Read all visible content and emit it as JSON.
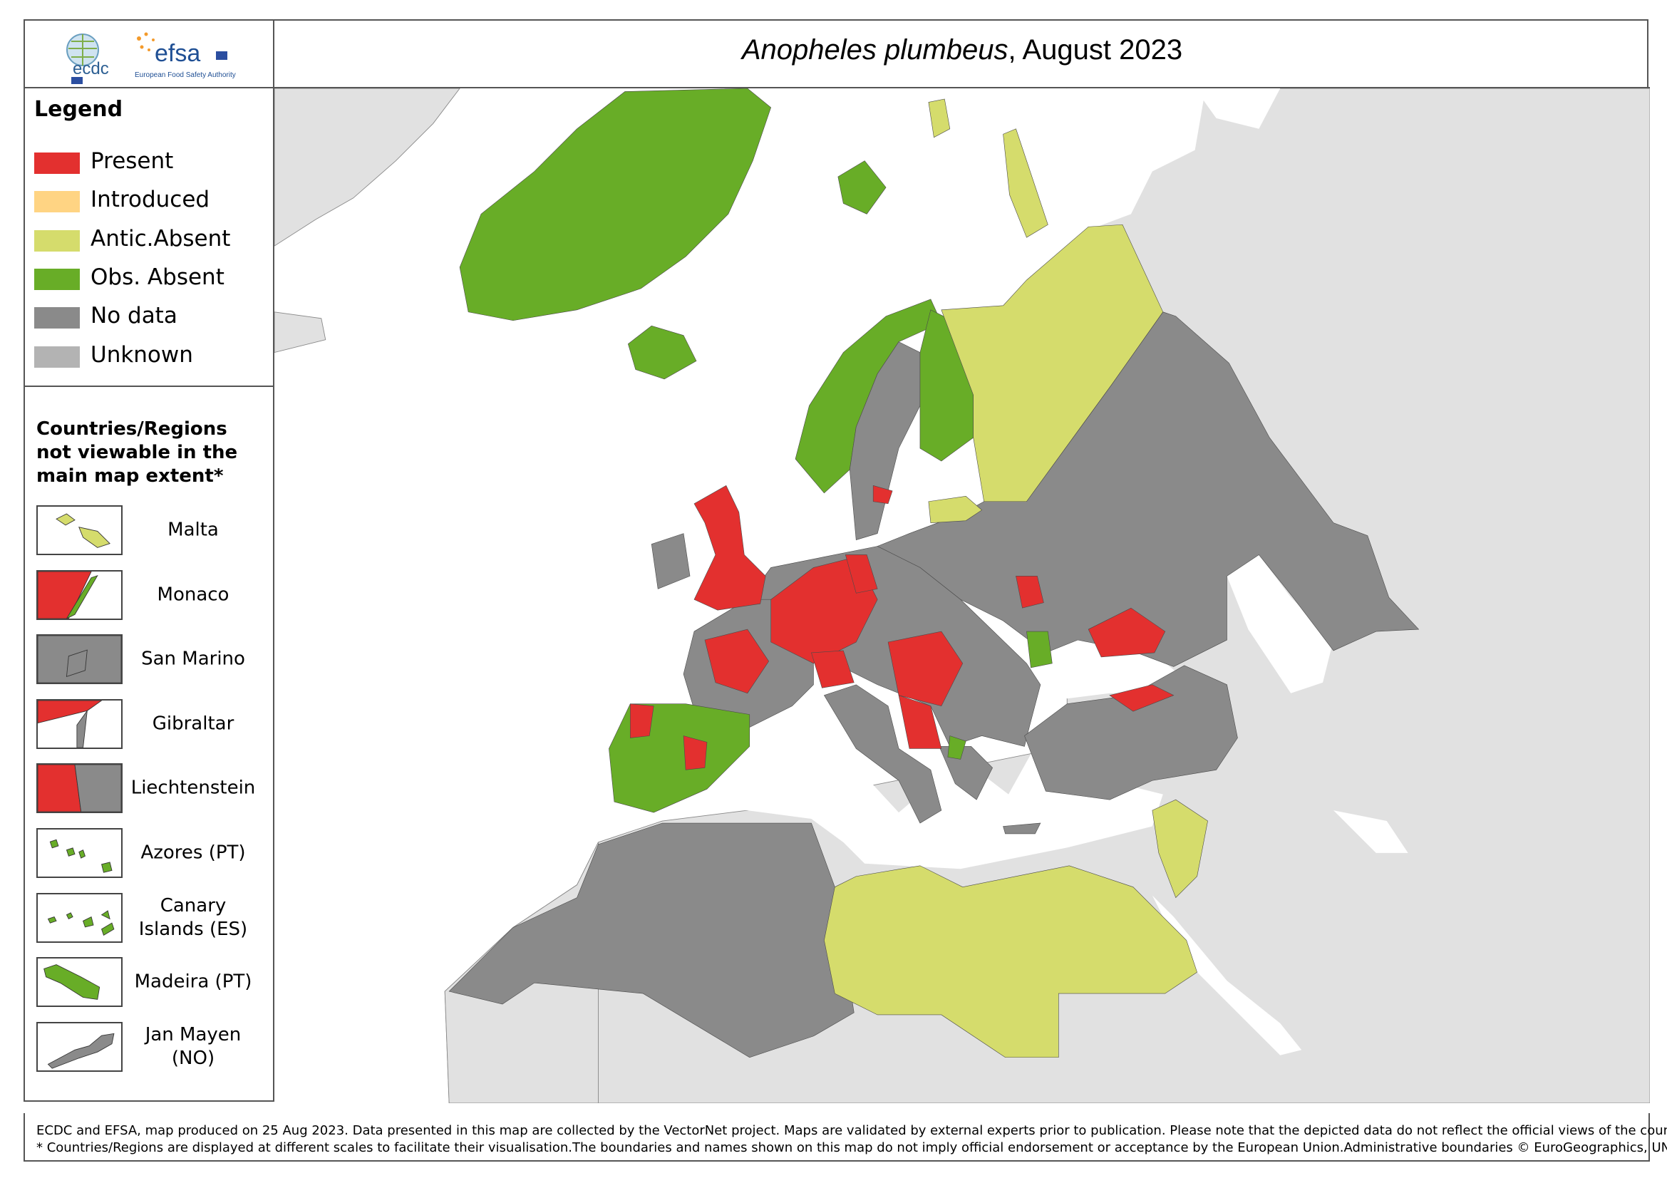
{
  "header": {
    "title": {
      "species": "Anopheles plumbeus",
      "date": ", August 2023"
    },
    "logos": {
      "ecdc": "ecdc",
      "efsa": "efsa",
      "efsa_caption": "European Food Safety Authority"
    }
  },
  "legend": {
    "title": "Legend",
    "items": [
      {
        "label": "Present",
        "color": "#e3302f"
      },
      {
        "label": "Introduced",
        "color": "#ffd483"
      },
      {
        "label": "Antic.Absent",
        "color": "#d5dc6c"
      },
      {
        "label": "Obs. Absent",
        "color": "#68ad27"
      },
      {
        "label": "No data",
        "color": "#8a8a8a"
      },
      {
        "label": "Unknown",
        "color": "#b3b3b3"
      }
    ]
  },
  "insets": {
    "title": "Countries/Regions not viewable in the main map extent*",
    "items": [
      "Malta",
      "Monaco",
      "San Marino",
      "Gibraltar",
      "Liechtenstein",
      "Azores (PT)",
      "Canary Islands (ES)",
      "Madeira (PT)",
      "Jan Mayen (NO)"
    ]
  },
  "footer": [
    "ECDC and EFSA, map produced on 25 Aug 2023. Data presented in this map are collected by the VectorNet project. Maps are validated by external experts prior to publication. Please note that the depicted data do not reflect the official views of the countries.",
    "* Countries/Regions are displayed at different scales to facilitate their visualisation.The boundaries and names shown on this map do not imply official endorsement or acceptance by the European Union.Administrative boundaries © EuroGeographics, UNFAO."
  ]
}
